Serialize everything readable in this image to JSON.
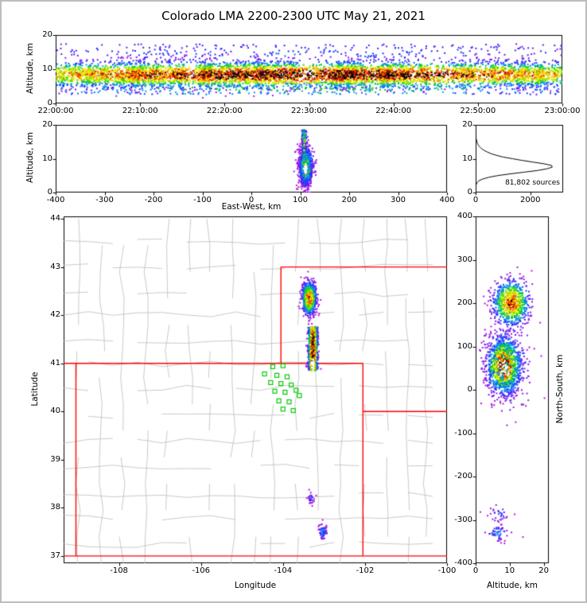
{
  "title": "Colorado LMA 2200-2300 UTC May 21, 2021",
  "colors": {
    "background": "#ffffff",
    "frame": "#bdbdbd",
    "axis": "#000000",
    "state_border": "#ff0000",
    "county_border": "#bbbbbb",
    "station_marker": "#00cc00",
    "histogram_line": "#000000",
    "text": "#000000"
  },
  "colormap": [
    "#be14dc",
    "#2828ff",
    "#00a0ff",
    "#00d200",
    "#96e600",
    "#ffff00",
    "#ffb400",
    "#ff2800",
    "#c80000",
    "#000000"
  ],
  "chart_data": [
    {
      "id": "time_height",
      "type": "scatter",
      "ylabel": "Altitude, km",
      "xlim": [
        0,
        3600
      ],
      "ylim": [
        0,
        20
      ],
      "xticks": [
        {
          "v": 0,
          "label": "22:00:00"
        },
        {
          "v": 600,
          "label": "22:10:00"
        },
        {
          "v": 1200,
          "label": "22:20:00"
        },
        {
          "v": 1800,
          "label": "22:30:00"
        },
        {
          "v": 2400,
          "label": "22:40:00"
        },
        {
          "v": 3000,
          "label": "22:50:00"
        },
        {
          "v": 3600,
          "label": "23:00:00"
        }
      ],
      "yticks": [
        {
          "v": 0,
          "label": "0"
        },
        {
          "v": 10,
          "label": "10"
        },
        {
          "v": 20,
          "label": "20"
        }
      ],
      "clusters": [
        {
          "n": 6500,
          "x": [
            1800,
            1800,
            "b"
          ],
          "y": [
            8.4,
            1.85,
            "g"
          ],
          "intensity": 0.99
        },
        {
          "n": 320,
          "x": [
            1800,
            1800,
            "u"
          ],
          "y": [
            14.8,
            2.6,
            "u"
          ],
          "intensity": 0.13
        },
        {
          "n": 380,
          "x": [
            1800,
            1800,
            "u"
          ],
          "y": [
            4.2,
            1.6,
            "u"
          ],
          "intensity": 0.28
        }
      ]
    },
    {
      "id": "east_west_height",
      "type": "scatter",
      "xlabel": "East-West, km",
      "ylabel": "Altitude, km",
      "xlim": [
        -400,
        400
      ],
      "ylim": [
        0,
        20
      ],
      "xticks": [
        {
          "v": -400,
          "label": "-400"
        },
        {
          "v": -300,
          "label": "-300"
        },
        {
          "v": -200,
          "label": "-200"
        },
        {
          "v": -100,
          "label": "-100"
        },
        {
          "v": 0,
          "label": "0"
        },
        {
          "v": 100,
          "label": "100"
        },
        {
          "v": 200,
          "label": "200"
        },
        {
          "v": 300,
          "label": "300"
        },
        {
          "v": 400,
          "label": "400"
        }
      ],
      "yticks": [
        {
          "v": 0,
          "label": "0"
        },
        {
          "v": 10,
          "label": "10"
        },
        {
          "v": 20,
          "label": "20"
        }
      ],
      "clusters": [
        {
          "n": 1700,
          "x": [
            111,
            5,
            "g"
          ],
          "y": [
            7.2,
            2.2,
            "g"
          ],
          "intensity": 1.0
        },
        {
          "n": 330,
          "x": [
            108,
            2.6,
            "g"
          ],
          "y": [
            14.2,
            4.3,
            "u"
          ],
          "intensity": 0.45
        },
        {
          "n": 220,
          "x": [
            112,
            9,
            "g"
          ],
          "y": [
            8,
            3.5,
            "g"
          ],
          "intensity": 0.32
        },
        {
          "n": 45,
          "x": [
            111,
            1.2,
            "g"
          ],
          "y": [
            7,
            0.7,
            "g"
          ],
          "color": "#ffffff"
        }
      ]
    },
    {
      "id": "altitude_histogram",
      "type": "histogram",
      "annotation": "81,802 sources",
      "xlim": [
        0,
        3200
      ],
      "ylim": [
        0,
        20
      ],
      "xticks": [
        {
          "v": 0,
          "label": "0"
        },
        {
          "v": 2000,
          "label": "2000"
        }
      ],
      "yticks": [
        {
          "v": 0,
          "label": "0"
        },
        {
          "v": 10,
          "label": "10"
        },
        {
          "v": 20,
          "label": "20"
        }
      ],
      "altitudes": [
        0,
        0.5,
        1,
        1.5,
        2,
        2.5,
        3,
        3.5,
        4,
        4.5,
        5,
        5.5,
        6,
        6.5,
        7,
        7.5,
        8,
        8.5,
        9,
        9.5,
        10,
        10.5,
        11,
        11.5,
        12,
        12.5,
        13,
        13.5,
        14,
        14.5,
        15,
        15.5,
        16,
        16.5,
        17,
        17.5,
        18,
        18.5,
        19,
        19.5,
        20
      ],
      "counts": [
        0,
        0,
        2,
        5,
        10,
        25,
        60,
        120,
        260,
        480,
        800,
        1250,
        1750,
        2250,
        2600,
        2800,
        2780,
        2500,
        2100,
        1700,
        1350,
        1000,
        760,
        560,
        420,
        300,
        210,
        150,
        100,
        70,
        45,
        30,
        18,
        10,
        6,
        3,
        1,
        0,
        0,
        0,
        0
      ]
    },
    {
      "id": "plan_view",
      "type": "map",
      "xlabel": "Longitude",
      "ylabel": "Latitude",
      "xlim": [
        -109.35,
        -100
      ],
      "ylim": [
        36.85,
        44.05
      ],
      "xticks": [
        {
          "v": -108,
          "label": "-108"
        },
        {
          "v": -106,
          "label": "-106"
        },
        {
          "v": -104,
          "label": "-104"
        },
        {
          "v": -102,
          "label": "-102"
        },
        {
          "v": -100,
          "label": "-100"
        }
      ],
      "yticks": [
        {
          "v": 37,
          "label": "37"
        },
        {
          "v": 38,
          "label": "38"
        },
        {
          "v": 39,
          "label": "39"
        },
        {
          "v": 40,
          "label": "40"
        },
        {
          "v": 41,
          "label": "41"
        },
        {
          "v": 42,
          "label": "42"
        },
        {
          "v": 43,
          "label": "43"
        },
        {
          "v": 44,
          "label": "44"
        }
      ],
      "state_lines": [
        [
          -109.35,
          41,
          -102.05,
          41
        ],
        [
          -109.05,
          37,
          -109.05,
          41
        ],
        [
          -109.35,
          37,
          -100,
          37
        ],
        [
          -102.05,
          37,
          -102.05,
          41
        ],
        [
          -104.05,
          41,
          -104.05,
          43
        ],
        [
          -104.05,
          43,
          -100,
          43
        ],
        [
          -102.05,
          40,
          -100,
          40
        ]
      ],
      "stations": [
        [
          -104.25,
          40.93
        ],
        [
          -104.0,
          40.95
        ],
        [
          -104.45,
          40.78
        ],
        [
          -104.15,
          40.75
        ],
        [
          -103.9,
          40.72
        ],
        [
          -104.3,
          40.6
        ],
        [
          -104.05,
          40.58
        ],
        [
          -103.8,
          40.55
        ],
        [
          -104.2,
          40.42
        ],
        [
          -103.95,
          40.4
        ],
        [
          -103.68,
          40.44
        ],
        [
          -104.1,
          40.22
        ],
        [
          -103.85,
          40.2
        ],
        [
          -104.0,
          40.05
        ],
        [
          -103.75,
          40.02
        ],
        [
          -103.6,
          40.33
        ]
      ],
      "clusters": [
        {
          "n": 1500,
          "x": [
            -103.27,
            0.055,
            "g"
          ],
          "y": [
            41.3,
            0.45,
            "u"
          ],
          "intensity": 1.0
        },
        {
          "n": 800,
          "x": [
            -103.36,
            0.085,
            "g"
          ],
          "y": [
            42.35,
            0.17,
            "g"
          ],
          "intensity": 0.8
        },
        {
          "n": 30,
          "x": [
            -103.32,
            0.04,
            "g"
          ],
          "y": [
            38.2,
            0.06,
            "g"
          ],
          "intensity": 0.12
        },
        {
          "n": 70,
          "x": [
            -103.03,
            0.05,
            "g"
          ],
          "y": [
            37.5,
            0.08,
            "g"
          ],
          "intensity": 0.2
        },
        {
          "n": 25,
          "x": [
            -103.27,
            0.02,
            "g"
          ],
          "y": [
            41.0,
            0.05,
            "g"
          ],
          "color": "#ffffff"
        }
      ]
    },
    {
      "id": "north_south_height",
      "type": "scatter",
      "xlabel": "Altitude, km",
      "ylabel": "North-South, km",
      "xlim": [
        0,
        21.5
      ],
      "ylim": [
        -400,
        400
      ],
      "xticks": [
        {
          "v": 0,
          "label": "0"
        },
        {
          "v": 10,
          "label": "10"
        },
        {
          "v": 20,
          "label": "20"
        }
      ],
      "yticks": [
        {
          "v": 400,
          "label": "400"
        },
        {
          "v": 300,
          "label": "300"
        },
        {
          "v": 200,
          "label": "200"
        },
        {
          "v": 100,
          "label": "100"
        },
        {
          "v": 0,
          "label": "0"
        },
        {
          "v": -100,
          "label": "-100"
        },
        {
          "v": -200,
          "label": "-200"
        },
        {
          "v": -300,
          "label": "-300"
        },
        {
          "v": -400,
          "label": "-400"
        }
      ],
      "clusters": [
        {
          "n": 1600,
          "x": [
            8.3,
            2.3,
            "g"
          ],
          "y": [
            55,
            30,
            "g"
          ],
          "intensity": 1.0
        },
        {
          "n": 260,
          "x": [
            9,
            3.6,
            "g"
          ],
          "y": [
            60,
            55,
            "g"
          ],
          "intensity": 0.3
        },
        {
          "n": 760,
          "x": [
            10.5,
            2.6,
            "g"
          ],
          "y": [
            200,
            26,
            "g"
          ],
          "intensity": 0.78
        },
        {
          "n": 30,
          "x": [
            7,
            1.5,
            "g"
          ],
          "y": [
            -285,
            12,
            "g"
          ],
          "intensity": 0.12
        },
        {
          "n": 55,
          "x": [
            6.5,
            1.6,
            "g"
          ],
          "y": [
            -330,
            10,
            "g"
          ],
          "intensity": 0.18
        },
        {
          "n": 40,
          "x": [
            8.3,
            1.0,
            "g"
          ],
          "y": [
            52,
            11,
            "g"
          ],
          "color": "#ffffff"
        }
      ]
    }
  ]
}
